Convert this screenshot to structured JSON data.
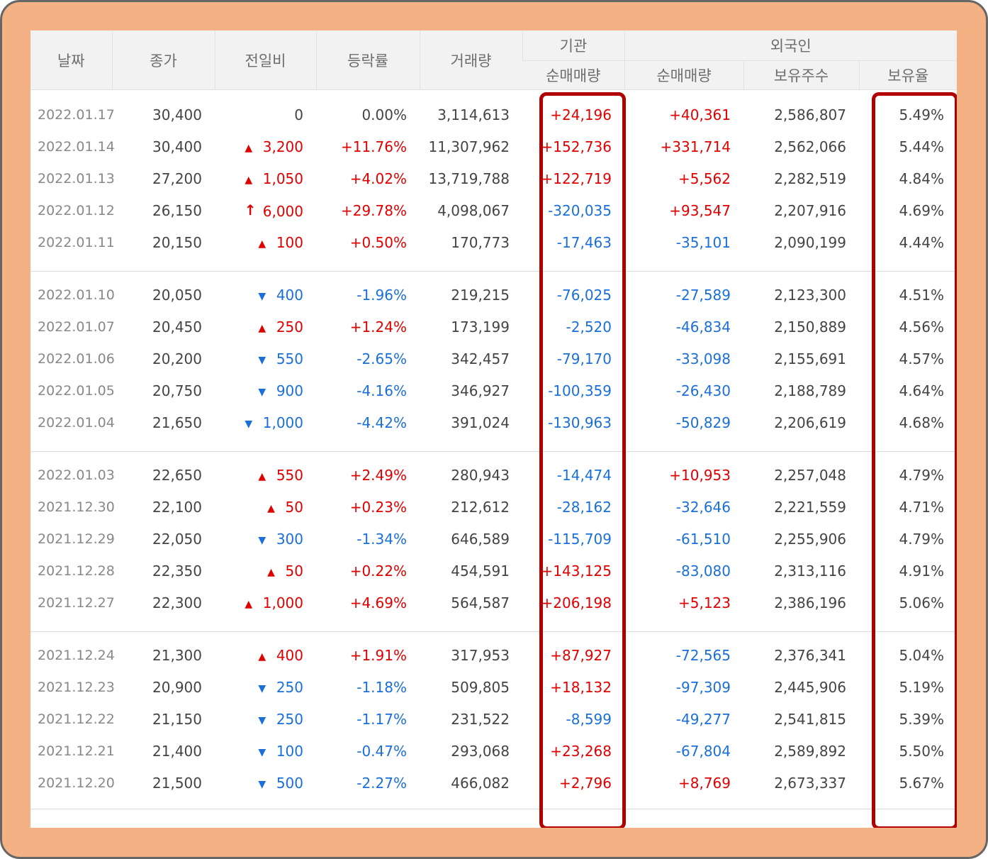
{
  "headers": {
    "date": "날짜",
    "close": "종가",
    "change": "전일비",
    "rate": "등락률",
    "volume": "거래량",
    "institution": "기관",
    "foreign": "외국인",
    "inst_net": "순매매량",
    "foreign_net": "순매매량",
    "foreign_shares": "보유주수",
    "foreign_ratio": "보유율"
  },
  "colors": {
    "up": "#e00000",
    "down": "#1a6fd8",
    "highlight": "#b00000",
    "frame": "#f4b183"
  },
  "rows": [
    {
      "date": "2022.01.17",
      "close": "30,400",
      "dir": "none",
      "change": "0",
      "rate": "0.00%",
      "volume": "3,114,613",
      "inst": "+24,196",
      "foreign": "+40,361",
      "shares": "2,586,807",
      "ratio": "5.49%"
    },
    {
      "date": "2022.01.14",
      "close": "30,400",
      "dir": "up",
      "change": "3,200",
      "rate": "+11.76%",
      "volume": "11,307,962",
      "inst": "+152,736",
      "foreign": "+331,714",
      "shares": "2,562,066",
      "ratio": "5.44%"
    },
    {
      "date": "2022.01.13",
      "close": "27,200",
      "dir": "up",
      "change": "1,050",
      "rate": "+4.02%",
      "volume": "13,719,788",
      "inst": "+122,719",
      "foreign": "+5,562",
      "shares": "2,282,519",
      "ratio": "4.84%"
    },
    {
      "date": "2022.01.12",
      "close": "26,150",
      "dir": "limit",
      "change": "6,000",
      "rate": "+29.78%",
      "volume": "4,098,067",
      "inst": "-320,035",
      "foreign": "+93,547",
      "shares": "2,207,916",
      "ratio": "4.69%"
    },
    {
      "date": "2022.01.11",
      "close": "20,150",
      "dir": "up",
      "change": "100",
      "rate": "+0.50%",
      "volume": "170,773",
      "inst": "-17,463",
      "foreign": "-35,101",
      "shares": "2,090,199",
      "ratio": "4.44%"
    },
    {
      "date": "2022.01.10",
      "close": "20,050",
      "dir": "down",
      "change": "400",
      "rate": "-1.96%",
      "volume": "219,215",
      "inst": "-76,025",
      "foreign": "-27,589",
      "shares": "2,123,300",
      "ratio": "4.51%"
    },
    {
      "date": "2022.01.07",
      "close": "20,450",
      "dir": "up",
      "change": "250",
      "rate": "+1.24%",
      "volume": "173,199",
      "inst": "-2,520",
      "foreign": "-46,834",
      "shares": "2,150,889",
      "ratio": "4.56%"
    },
    {
      "date": "2022.01.06",
      "close": "20,200",
      "dir": "down",
      "change": "550",
      "rate": "-2.65%",
      "volume": "342,457",
      "inst": "-79,170",
      "foreign": "-33,098",
      "shares": "2,155,691",
      "ratio": "4.57%"
    },
    {
      "date": "2022.01.05",
      "close": "20,750",
      "dir": "down",
      "change": "900",
      "rate": "-4.16%",
      "volume": "346,927",
      "inst": "-100,359",
      "foreign": "-26,430",
      "shares": "2,188,789",
      "ratio": "4.64%"
    },
    {
      "date": "2022.01.04",
      "close": "21,650",
      "dir": "down",
      "change": "1,000",
      "rate": "-4.42%",
      "volume": "391,024",
      "inst": "-130,963",
      "foreign": "-50,829",
      "shares": "2,206,619",
      "ratio": "4.68%"
    },
    {
      "date": "2022.01.03",
      "close": "22,650",
      "dir": "up",
      "change": "550",
      "rate": "+2.49%",
      "volume": "280,943",
      "inst": "-14,474",
      "foreign": "+10,953",
      "shares": "2,257,048",
      "ratio": "4.79%"
    },
    {
      "date": "2021.12.30",
      "close": "22,100",
      "dir": "up",
      "change": "50",
      "rate": "+0.23%",
      "volume": "212,612",
      "inst": "-28,162",
      "foreign": "-32,646",
      "shares": "2,221,559",
      "ratio": "4.71%"
    },
    {
      "date": "2021.12.29",
      "close": "22,050",
      "dir": "down",
      "change": "300",
      "rate": "-1.34%",
      "volume": "646,589",
      "inst": "-115,709",
      "foreign": "-61,510",
      "shares": "2,255,906",
      "ratio": "4.79%"
    },
    {
      "date": "2021.12.28",
      "close": "22,350",
      "dir": "up",
      "change": "50",
      "rate": "+0.22%",
      "volume": "454,591",
      "inst": "+143,125",
      "foreign": "-83,080",
      "shares": "2,313,116",
      "ratio": "4.91%"
    },
    {
      "date": "2021.12.27",
      "close": "22,300",
      "dir": "up",
      "change": "1,000",
      "rate": "+4.69%",
      "volume": "564,587",
      "inst": "+206,198",
      "foreign": "+5,123",
      "shares": "2,386,196",
      "ratio": "5.06%"
    },
    {
      "date": "2021.12.24",
      "close": "21,300",
      "dir": "up",
      "change": "400",
      "rate": "+1.91%",
      "volume": "317,953",
      "inst": "+87,927",
      "foreign": "-72,565",
      "shares": "2,376,341",
      "ratio": "5.04%"
    },
    {
      "date": "2021.12.23",
      "close": "20,900",
      "dir": "down",
      "change": "250",
      "rate": "-1.18%",
      "volume": "509,805",
      "inst": "+18,132",
      "foreign": "-97,309",
      "shares": "2,445,906",
      "ratio": "5.19%"
    },
    {
      "date": "2021.12.22",
      "close": "21,150",
      "dir": "down",
      "change": "250",
      "rate": "-1.17%",
      "volume": "231,522",
      "inst": "-8,599",
      "foreign": "-49,277",
      "shares": "2,541,815",
      "ratio": "5.39%"
    },
    {
      "date": "2021.12.21",
      "close": "21,400",
      "dir": "down",
      "change": "100",
      "rate": "-0.47%",
      "volume": "293,068",
      "inst": "+23,268",
      "foreign": "-67,804",
      "shares": "2,589,892",
      "ratio": "5.50%"
    },
    {
      "date": "2021.12.20",
      "close": "21,500",
      "dir": "down",
      "change": "500",
      "rate": "-2.27%",
      "volume": "466,082",
      "inst": "+2,796",
      "foreign": "+8,769",
      "shares": "2,673,337",
      "ratio": "5.67%"
    }
  ]
}
